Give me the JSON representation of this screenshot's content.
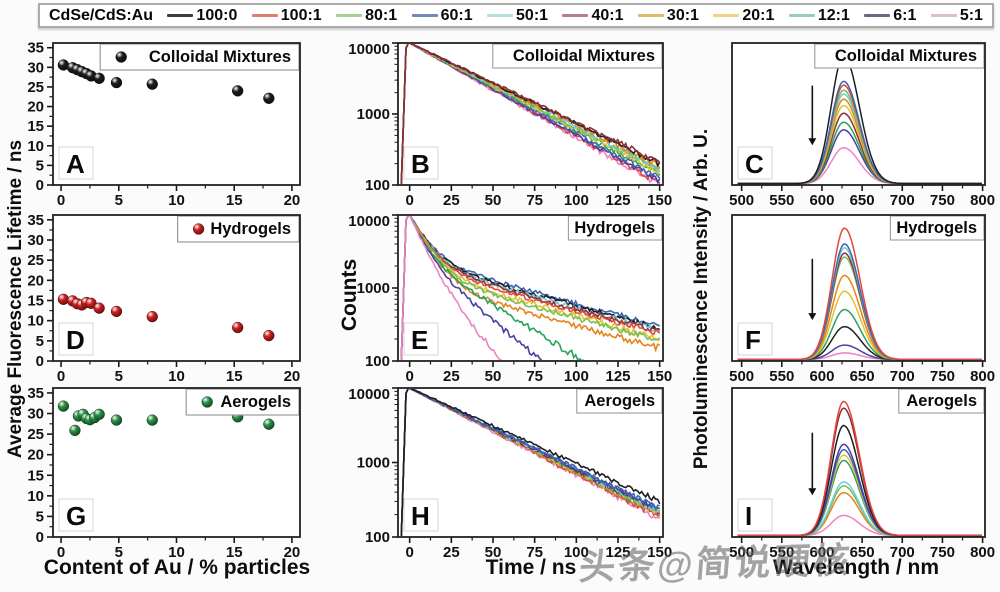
{
  "legend": {
    "title": "CdSe/CdS:Au",
    "items": [
      {
        "label": "100:0",
        "color": "#3c3c3c"
      },
      {
        "label": "100:1",
        "color": "#dd8072"
      },
      {
        "label": "80:1",
        "color": "#a4cf97"
      },
      {
        "label": "60:1",
        "color": "#7189b9"
      },
      {
        "label": "50:1",
        "color": "#b9dede"
      },
      {
        "label": "40:1",
        "color": "#b2808c"
      },
      {
        "label": "30:1",
        "color": "#d9bc6b"
      },
      {
        "label": "20:1",
        "color": "#eed389"
      },
      {
        "label": "12:1",
        "color": "#97cfb0"
      },
      {
        "label": "6:1",
        "color": "#686884"
      },
      {
        "label": "5:1",
        "color": "#d9bfce"
      }
    ]
  },
  "palette": {
    "100:0": "#1f1f1f",
    "100:1": "#e2473b",
    "80:1": "#7bbd55",
    "60:1": "#3c66b4",
    "50:1": "#6fcdd6",
    "40:1": "#8e2f38",
    "30:1": "#e8831c",
    "20:1": "#e3c32f",
    "12:1": "#27a35c",
    "6:1": "#4b3f9e",
    "5:1": "#ef82c4"
  },
  "axis_titles": {
    "lifetime": "Average Fluorescence Lifetime / ns",
    "counts": "Counts",
    "pl": "Photoluminescence Intensity / Arb. U.",
    "au": "Content of Au / % particles",
    "time": "Time / ns",
    "wavelength": "Wavelength / nm"
  },
  "watermark": "头条@简说硬核",
  "chart_data": [
    {
      "panel": "A",
      "type": "scatter",
      "title": "Colloidal Mixtures",
      "color": "#1c1c1c",
      "xlim": [
        -0.7,
        20.7
      ],
      "ylim": [
        0,
        36.2
      ],
      "xticks": [
        0,
        5,
        10,
        15,
        20
      ],
      "yticks": [
        0,
        5,
        10,
        15,
        20,
        25,
        30,
        35
      ],
      "x": [
        0.2,
        1.0,
        1.4,
        1.8,
        2.2,
        2.6,
        3.3,
        4.8,
        7.9,
        15.3,
        18.0
      ],
      "y": [
        30.6,
        29.9,
        29.4,
        28.9,
        28.4,
        27.8,
        27.2,
        26.1,
        25.7,
        24.0,
        22.1
      ]
    },
    {
      "panel": "B",
      "type": "decay",
      "title": "Colloidal Mixtures",
      "shape": "straight",
      "xlim": [
        -7,
        152
      ],
      "ylim": [
        100,
        10000
      ],
      "xticks": [
        0,
        25,
        50,
        75,
        100,
        125,
        150
      ],
      "yticks": [
        100,
        1000,
        10000
      ],
      "series": [
        {
          "ratio": "5:1",
          "end": 100
        },
        {
          "ratio": "100:1",
          "end": 108
        },
        {
          "ratio": "6:1",
          "end": 114
        },
        {
          "ratio": "60:1",
          "end": 126
        },
        {
          "ratio": "12:1",
          "end": 140
        },
        {
          "ratio": "20:1",
          "end": 150
        },
        {
          "ratio": "80:1",
          "end": 160
        },
        {
          "ratio": "50:1",
          "end": 170
        },
        {
          "ratio": "30:1",
          "end": 186
        },
        {
          "ratio": "100:0",
          "end": 200
        },
        {
          "ratio": "40:1",
          "end": 210
        }
      ]
    },
    {
      "panel": "C",
      "type": "spectra",
      "title": "Colloidal Mixtures",
      "peak": 627,
      "arrow_x": 588,
      "xlim": [
        488,
        803
      ],
      "xticks": [
        500,
        550,
        600,
        650,
        700,
        750,
        800
      ],
      "series": [
        {
          "ratio": "5:1",
          "height": 0.28
        },
        {
          "ratio": "6:1",
          "height": 0.42
        },
        {
          "ratio": "12:1",
          "height": 0.48
        },
        {
          "ratio": "40:1",
          "height": 0.55
        },
        {
          "ratio": "20:1",
          "height": 0.61
        },
        {
          "ratio": "30:1",
          "height": 0.66
        },
        {
          "ratio": "50:1",
          "height": 0.7
        },
        {
          "ratio": "80:1",
          "height": 0.73
        },
        {
          "ratio": "100:1",
          "height": 0.77
        },
        {
          "ratio": "60:1",
          "height": 0.8
        },
        {
          "ratio": "100:0",
          "height": 1.0
        }
      ]
    },
    {
      "panel": "D",
      "type": "scatter",
      "title": "Hydrogels",
      "color": "#cf2020",
      "xlim": [
        -0.7,
        20.7
      ],
      "ylim": [
        0,
        36.2
      ],
      "xticks": [
        0,
        5,
        10,
        15,
        20
      ],
      "yticks": [
        0,
        5,
        10,
        15,
        20,
        25,
        30,
        35
      ],
      "x": [
        0.2,
        1.0,
        1.4,
        1.8,
        2.2,
        2.6,
        3.3,
        4.8,
        7.9,
        15.3,
        18.0
      ],
      "y": [
        15.3,
        14.9,
        14.2,
        13.9,
        14.5,
        14.3,
        13.1,
        12.3,
        11.0,
        8.3,
        6.3
      ]
    },
    {
      "panel": "E",
      "type": "decay",
      "title": "Hydrogels",
      "shape": "curved",
      "xlim": [
        -7,
        152
      ],
      "ylim": [
        100,
        10000
      ],
      "xticks": [
        0,
        25,
        50,
        75,
        100,
        125,
        150
      ],
      "yticks": [
        100,
        1000,
        10000
      ],
      "series": [
        {
          "ratio": "60:1",
          "end": 300
        },
        {
          "ratio": "100:0",
          "end": 280
        },
        {
          "ratio": "50:1",
          "end": 260
        },
        {
          "ratio": "40:1",
          "end": 250
        },
        {
          "ratio": "100:1",
          "end": 235
        },
        {
          "ratio": "20:1",
          "end": 205
        },
        {
          "ratio": "80:1",
          "end": 190
        },
        {
          "ratio": "30:1",
          "end": 150
        },
        {
          "ratio": "12:1",
          "t100": 105
        },
        {
          "ratio": "6:1",
          "t100": 80
        },
        {
          "ratio": "5:1",
          "t100": 55
        }
      ]
    },
    {
      "panel": "F",
      "type": "spectra",
      "title": "Hydrogels",
      "peak": 628,
      "arrow_x": 588,
      "xlim": [
        488,
        803
      ],
      "xticks": [
        500,
        550,
        600,
        650,
        700,
        750,
        800
      ],
      "series": [
        {
          "ratio": "5:1",
          "height": 0.05
        },
        {
          "ratio": "6:1",
          "height": 0.11
        },
        {
          "ratio": "100:0",
          "height": 0.25
        },
        {
          "ratio": "12:1",
          "height": 0.38
        },
        {
          "ratio": "20:1",
          "height": 0.52
        },
        {
          "ratio": "30:1",
          "height": 0.64
        },
        {
          "ratio": "80:1",
          "height": 0.78
        },
        {
          "ratio": "40:1",
          "height": 0.81
        },
        {
          "ratio": "50:1",
          "height": 0.85
        },
        {
          "ratio": "60:1",
          "height": 0.88
        },
        {
          "ratio": "100:1",
          "height": 1.0
        }
      ]
    },
    {
      "panel": "G",
      "type": "scatter",
      "title": "Aerogels",
      "color": "#2c9146",
      "xlim": [
        -0.7,
        20.7
      ],
      "ylim": [
        0,
        36.2
      ],
      "xticks": [
        0,
        5,
        10,
        15,
        20
      ],
      "yticks": [
        0,
        5,
        10,
        15,
        20,
        25,
        30,
        35
      ],
      "x": [
        0.2,
        1.2,
        1.5,
        1.9,
        2.2,
        2.5,
        2.9,
        3.3,
        4.8,
        7.9,
        15.3,
        18.0
      ],
      "y": [
        31.8,
        25.9,
        29.4,
        29.8,
        28.8,
        28.5,
        29.0,
        29.8,
        28.4,
        28.4,
        29.2,
        27.4
      ]
    },
    {
      "panel": "H",
      "type": "decay",
      "title": "Aerogels",
      "shape": "straight",
      "xlim": [
        -7,
        152
      ],
      "ylim": [
        100,
        10000
      ],
      "xticks": [
        0,
        25,
        50,
        75,
        100,
        125,
        150
      ],
      "yticks": [
        100,
        1000,
        10000
      ],
      "series": [
        {
          "ratio": "5:1",
          "end": 175
        },
        {
          "ratio": "100:1",
          "end": 185
        },
        {
          "ratio": "30:1",
          "end": 200
        },
        {
          "ratio": "12:1",
          "end": 205
        },
        {
          "ratio": "20:1",
          "end": 210
        },
        {
          "ratio": "80:1",
          "end": 215
        },
        {
          "ratio": "40:1",
          "end": 220
        },
        {
          "ratio": "50:1",
          "end": 225
        },
        {
          "ratio": "6:1",
          "end": 230
        },
        {
          "ratio": "60:1",
          "end": 240
        },
        {
          "ratio": "100:0",
          "end": 300
        }
      ]
    },
    {
      "panel": "I",
      "type": "spectra",
      "title": "Aerogels",
      "peak": 627,
      "arrow_x": 588,
      "xlim": [
        488,
        803
      ],
      "xticks": [
        500,
        550,
        600,
        650,
        700,
        750,
        800
      ],
      "series": [
        {
          "ratio": "5:1",
          "height": 0.15
        },
        {
          "ratio": "30:1",
          "height": 0.32
        },
        {
          "ratio": "80:1",
          "height": 0.37
        },
        {
          "ratio": "50:1",
          "height": 0.4
        },
        {
          "ratio": "12:1",
          "height": 0.56
        },
        {
          "ratio": "20:1",
          "height": 0.6
        },
        {
          "ratio": "60:1",
          "height": 0.64
        },
        {
          "ratio": "6:1",
          "height": 0.68
        },
        {
          "ratio": "100:0",
          "height": 0.82
        },
        {
          "ratio": "40:1",
          "height": 0.95
        },
        {
          "ratio": "100:1",
          "height": 1.0
        }
      ]
    }
  ]
}
